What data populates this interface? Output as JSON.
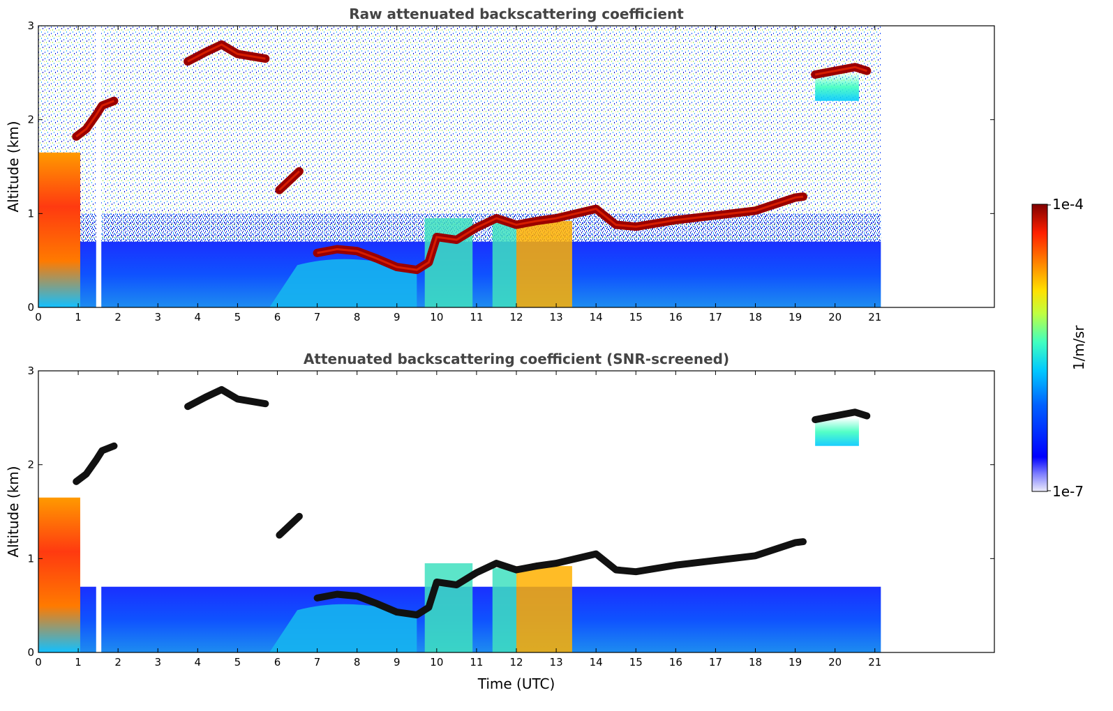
{
  "chart_data": [
    {
      "type": "heatmap",
      "title": "Raw attenuated backscattering coefficient",
      "xlabel": "",
      "ylabel": "Altitude (km)",
      "xlim": [
        0,
        24
      ],
      "ylim": [
        0,
        3
      ],
      "x_ticks": [
        "0",
        "1",
        "2",
        "3",
        "4",
        "5",
        "6",
        "7",
        "8",
        "9",
        "10",
        "11",
        "12",
        "13",
        "14",
        "15",
        "16",
        "17",
        "18",
        "19",
        "20",
        "21"
      ],
      "y_ticks": [
        "0",
        "1",
        "2",
        "3"
      ],
      "data_end_time": 21.15,
      "grid": false,
      "background_noise": "dense speckle from ~0.8 km to 3 km",
      "boundary_layer_top_km": 0.7,
      "cloud_layers": [
        {
          "x": [
            7.0,
            7.5,
            8.0,
            8.5,
            9.0,
            9.5,
            9.8,
            10.0,
            10.5,
            11.0,
            11.5,
            12.0,
            12.5,
            13.0,
            13.5,
            14.0,
            14.5,
            15.0,
            16.0,
            17.0,
            18.0,
            18.5,
            19.0,
            19.2
          ],
          "y": [
            0.58,
            0.62,
            0.6,
            0.52,
            0.43,
            0.4,
            0.48,
            0.75,
            0.72,
            0.85,
            0.95,
            0.88,
            0.92,
            0.95,
            1.0,
            1.05,
            0.88,
            0.86,
            0.93,
            0.98,
            1.03,
            1.1,
            1.17,
            1.18
          ]
        },
        {
          "x": [
            3.75,
            4.2,
            4.6,
            5.0,
            5.7
          ],
          "y": [
            2.62,
            2.72,
            2.8,
            2.7,
            2.65
          ]
        },
        {
          "x": [
            0.95,
            1.2,
            1.45,
            1.6,
            1.9
          ],
          "y": [
            1.82,
            1.9,
            2.05,
            2.15,
            2.2
          ]
        },
        {
          "x": [
            19.5,
            20.0,
            20.5,
            20.8
          ],
          "y": [
            2.48,
            2.52,
            2.56,
            2.52
          ]
        },
        {
          "x": [
            6.05,
            6.3,
            6.55
          ],
          "y": [
            1.25,
            1.35,
            1.45
          ]
        }
      ]
    },
    {
      "type": "heatmap",
      "title": "Attenuated backscattering coefficient (SNR-screened)",
      "xlabel": "Time (UTC)",
      "ylabel": "Altitude (km)",
      "xlim": [
        0,
        24
      ],
      "ylim": [
        0,
        3
      ],
      "x_ticks": [
        "0",
        "1",
        "2",
        "3",
        "4",
        "5",
        "6",
        "7",
        "8",
        "9",
        "10",
        "11",
        "12",
        "13",
        "14",
        "15",
        "16",
        "17",
        "18",
        "19",
        "20",
        "21"
      ],
      "y_ticks": [
        "0",
        "1",
        "2",
        "3"
      ],
      "grid": false,
      "background_noise": "none (screened to white)",
      "boundary_layer_top_km": 0.7,
      "cloud_layer_color": "black"
    }
  ],
  "colorbar": {
    "label": "1/m/sr",
    "max_label": "1e-4",
    "min_label": "1e-7",
    "colormap": "jet",
    "scale": "log"
  }
}
